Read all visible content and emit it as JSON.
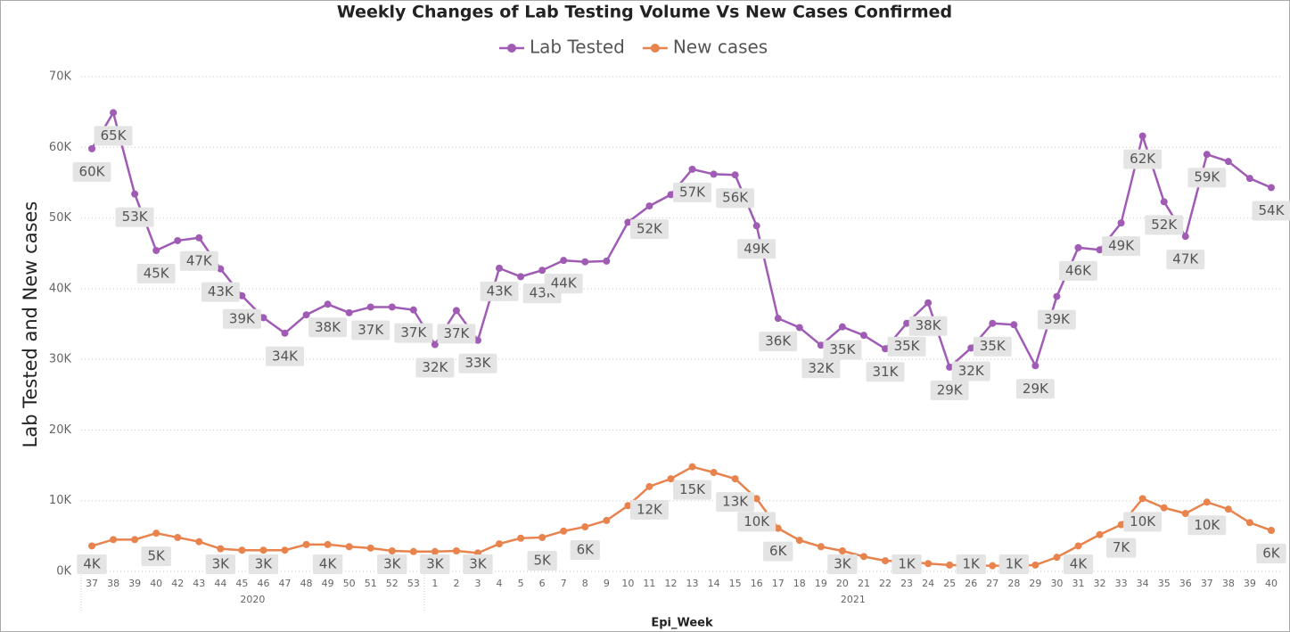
{
  "chart_data": {
    "type": "line",
    "title": "Weekly Changes of Lab Testing Volume Vs New Cases Confirmed",
    "y_label": "Lab Tested and New cases",
    "x_label": "Epi_Week",
    "x_group_labels": [
      "2020",
      "2021"
    ],
    "categories": [
      "37",
      "38",
      "39",
      "40",
      "42",
      "43",
      "44",
      "45",
      "46",
      "47",
      "48",
      "49",
      "50",
      "51",
      "52",
      "53",
      "1",
      "2",
      "3",
      "4",
      "5",
      "6",
      "7",
      "8",
      "9",
      "10",
      "11",
      "12",
      "13",
      "14",
      "15",
      "16",
      "17",
      "18",
      "19",
      "20",
      "21",
      "22",
      "23",
      "24",
      "25",
      "26",
      "27",
      "28",
      "29",
      "30",
      "31",
      "32",
      "33",
      "34",
      "35",
      "36",
      "37",
      "38",
      "39",
      "40"
    ],
    "series": [
      {
        "name": "Lab Tested",
        "color": "#a05cb4",
        "values": [
          59800,
          64900,
          53400,
          45400,
          46800,
          47200,
          42800,
          39000,
          35900,
          33700,
          36300,
          37800,
          36600,
          37400,
          37400,
          37000,
          32100,
          36900,
          32700,
          42900,
          41700,
          42600,
          44000,
          43800,
          43900,
          49400,
          51700,
          53300,
          56900,
          56200,
          56100,
          48900,
          35800,
          34500,
          32000,
          34600,
          33400,
          31500,
          35100,
          38000,
          28900,
          31600,
          35100,
          34900,
          29100,
          38900,
          45800,
          45500,
          49300,
          61600,
          52300,
          47400,
          59000,
          58000,
          55600,
          54300
        ],
        "value_labels": [
          "60K",
          "65K",
          "53K",
          "45K",
          null,
          "47K",
          "43K",
          "39K",
          null,
          "34K",
          null,
          "38K",
          null,
          "37K",
          null,
          "37K",
          "32K",
          "37K",
          "33K",
          "43K",
          null,
          "43K",
          "44K",
          null,
          null,
          null,
          "52K",
          null,
          "57K",
          null,
          "56K",
          "49K",
          "36K",
          null,
          "32K",
          "35K",
          null,
          "31K",
          "35K",
          "38K",
          "29K",
          "32K",
          "35K",
          null,
          "29K",
          "39K",
          "46K",
          null,
          "49K",
          "62K",
          "52K",
          "47K",
          "59K",
          null,
          null,
          "54K"
        ]
      },
      {
        "name": "New cases",
        "color": "#e8834e",
        "values": [
          3600,
          4500,
          4500,
          5400,
          4800,
          4200,
          3200,
          3000,
          3000,
          3000,
          3800,
          3800,
          3500,
          3300,
          2900,
          2800,
          2800,
          2900,
          2600,
          3900,
          4700,
          4800,
          5700,
          6300,
          7200,
          9300,
          12000,
          13100,
          14800,
          14000,
          13100,
          10300,
          6100,
          4400,
          3500,
          2900,
          2100,
          1500,
          1400,
          1100,
          900,
          800,
          800,
          800,
          900,
          2000,
          3600,
          5200,
          6600,
          10300,
          9000,
          8200,
          9800,
          8800,
          6900,
          5800
        ],
        "value_labels": [
          "4K",
          null,
          null,
          "5K",
          null,
          null,
          "3K",
          null,
          "3K",
          null,
          null,
          "4K",
          null,
          null,
          "3K",
          null,
          "3K",
          null,
          "3K",
          null,
          null,
          "5K",
          null,
          "6K",
          null,
          null,
          "12K",
          null,
          "15K",
          null,
          "13K",
          "10K",
          "6K",
          null,
          null,
          "3K",
          null,
          null,
          "1K",
          null,
          null,
          "1K",
          null,
          "1K",
          null,
          null,
          "4K",
          null,
          "7K",
          "10K",
          null,
          null,
          "10K",
          null,
          null,
          "6K"
        ]
      }
    ],
    "ylim": [
      0,
      70000
    ],
    "yticks": [
      {
        "value": 0,
        "label": "0K"
      },
      {
        "value": 10000,
        "label": "10K"
      },
      {
        "value": 20000,
        "label": "20K"
      },
      {
        "value": 30000,
        "label": "30K"
      },
      {
        "value": 40000,
        "label": "40K"
      },
      {
        "value": 50000,
        "label": "50K"
      },
      {
        "value": 60000,
        "label": "60K"
      },
      {
        "value": 70000,
        "label": "70K"
      }
    ],
    "grid": true,
    "legend": "top"
  }
}
